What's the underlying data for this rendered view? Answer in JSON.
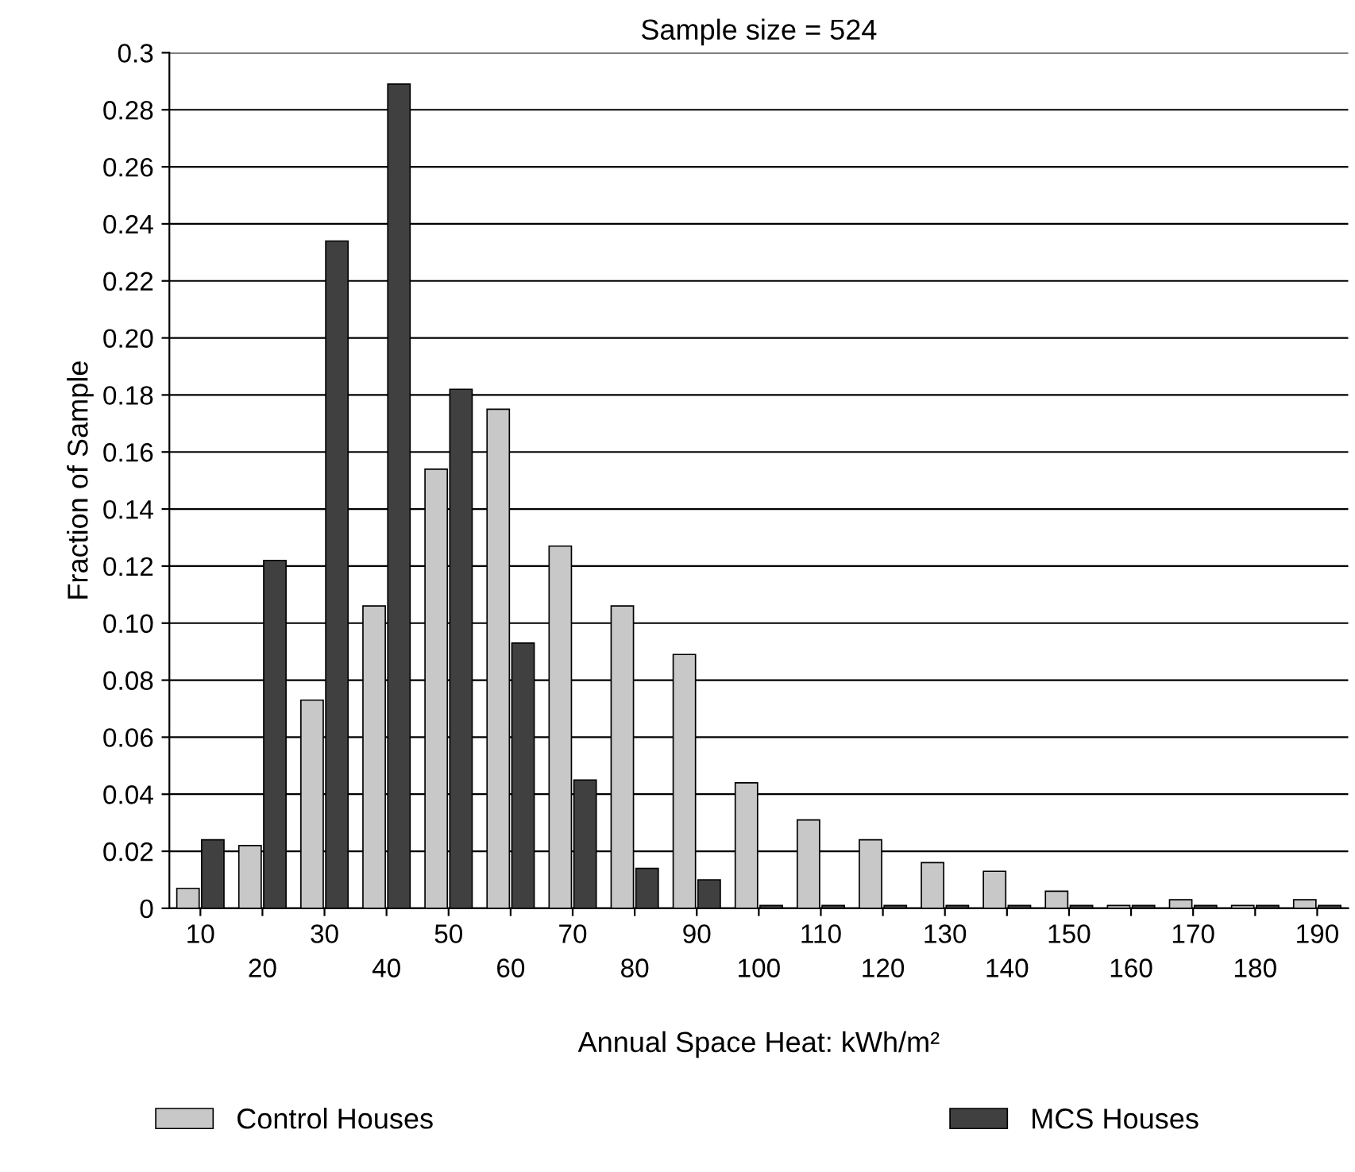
{
  "chart_data": {
    "type": "bar",
    "title": "Sample size = 524",
    "xlabel": "Annual Space Heat: kWh/m²",
    "ylabel": "Fraction of Sample",
    "categories": [
      "10",
      "20",
      "30",
      "40",
      "50",
      "60",
      "70",
      "80",
      "90",
      "100",
      "110",
      "120",
      "130",
      "140",
      "150",
      "160",
      "170",
      "180",
      "190"
    ],
    "series": [
      {
        "name": "Control Houses",
        "color": "#c8c8c8",
        "values": [
          0.007,
          0.022,
          0.073,
          0.106,
          0.154,
          0.175,
          0.127,
          0.106,
          0.089,
          0.044,
          0.031,
          0.024,
          0.016,
          0.013,
          0.006,
          0.001,
          0.003,
          0.001,
          0.003
        ]
      },
      {
        "name": "MCS Houses",
        "color": "#404040",
        "values": [
          0.024,
          0.122,
          0.234,
          0.289,
          0.182,
          0.093,
          0.045,
          0.014,
          0.01,
          0.001,
          0.001,
          0.001,
          0.001,
          0.001,
          0.001,
          0.001,
          0.001,
          0.001,
          0.001
        ]
      }
    ],
    "ylim": [
      0,
      0.3
    ],
    "yticks": [
      0,
      0.02,
      0.04,
      0.06,
      0.08,
      {
        "value": 0.1,
        "label": "0.10"
      },
      0.12,
      0.14,
      0.16,
      0.18,
      {
        "value": 0.2,
        "label": "0.20"
      },
      0.22,
      0.24,
      0.26,
      0.28,
      0.3
    ],
    "grid": "y",
    "legend": "bottom"
  }
}
